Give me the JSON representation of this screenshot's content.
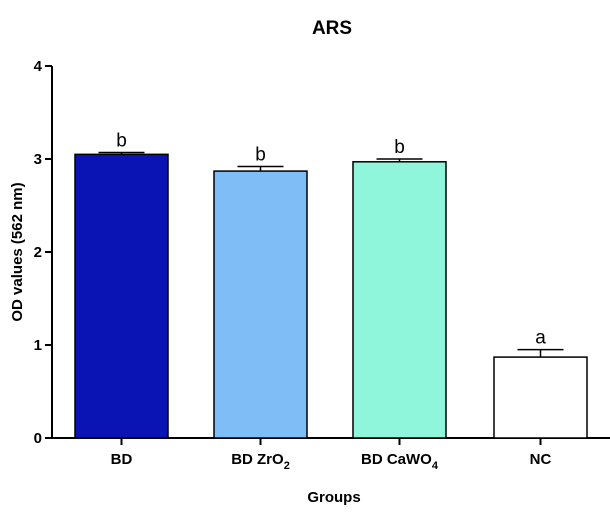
{
  "chart_data": {
    "type": "bar",
    "title": "ARS",
    "xlabel": "Groups",
    "ylabel": "OD values (562 nm)",
    "ylim": [
      0,
      4
    ],
    "yticks": [
      "0",
      "1",
      "2",
      "3",
      "4"
    ],
    "grid": false,
    "categories": [
      {
        "main": "BD",
        "sub": ""
      },
      {
        "main": "BD ZrO",
        "sub": "2"
      },
      {
        "main": "BD CaWO",
        "sub": "4"
      },
      {
        "main": "NC",
        "sub": ""
      }
    ],
    "values": [
      3.05,
      2.87,
      2.97,
      0.87
    ],
    "errors": [
      0.02,
      0.05,
      0.03,
      0.08
    ],
    "significance_labels": [
      "b",
      "b",
      "b",
      "a"
    ],
    "colors": [
      "#0a14b4",
      "#7fbdf7",
      "#8ff6dc",
      "#ffffff"
    ]
  }
}
